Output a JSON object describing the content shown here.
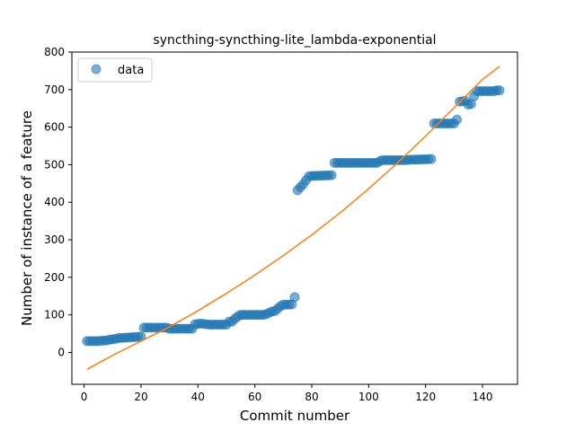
{
  "chart_data": {
    "type": "scatter",
    "title": "syncthing-syncthing-lite_lambda-exponential",
    "xlabel": "Commit number",
    "ylabel": "Number of instance of a feature",
    "xlim": [
      -4.3,
      152.3
    ],
    "ylim": [
      -85,
      800
    ],
    "x_ticks": [
      0,
      20,
      40,
      60,
      80,
      100,
      120,
      140
    ],
    "y_ticks": [
      0,
      100,
      200,
      300,
      400,
      500,
      600,
      700,
      800
    ],
    "legend": {
      "placement": "top-left",
      "entries": [
        "data"
      ]
    },
    "grid": false,
    "series": [
      {
        "name": "data",
        "kind": "scatter",
        "color": "#1f77b4",
        "segments": [
          [
            1,
            5,
            30,
            30
          ],
          [
            6,
            8,
            31,
            32
          ],
          [
            9,
            11,
            34,
            36
          ],
          [
            12,
            20,
            38,
            42
          ],
          [
            21,
            22,
            66,
            66
          ],
          [
            23,
            29,
            66,
            66
          ],
          [
            30,
            38,
            63,
            63
          ],
          [
            39,
            41,
            75,
            77
          ],
          [
            42,
            44,
            76,
            74
          ],
          [
            45,
            50,
            74,
            74
          ],
          [
            51,
            52,
            82,
            82
          ],
          [
            53,
            54,
            90,
            96
          ],
          [
            55,
            63,
            100,
            100
          ],
          [
            64,
            66,
            102,
            109
          ],
          [
            67,
            69,
            110,
            123
          ],
          [
            70,
            73,
            127,
            128
          ],
          [
            74,
            74,
            147,
            147
          ],
          [
            75,
            76,
            432,
            440
          ],
          [
            77,
            79,
            448,
            469
          ],
          [
            80,
            87,
            470,
            472
          ],
          [
            88,
            102,
            505,
            505
          ],
          [
            103,
            104,
            505,
            510
          ],
          [
            105,
            113,
            512,
            512
          ],
          [
            114,
            122,
            513,
            515
          ],
          [
            123,
            127,
            610,
            610
          ],
          [
            128,
            130,
            610,
            610
          ],
          [
            131,
            131,
            620,
            620
          ],
          [
            132,
            134,
            668,
            670
          ],
          [
            135,
            136,
            660,
            662
          ],
          [
            137,
            138,
            682,
            696
          ],
          [
            139,
            144,
            696,
            696
          ],
          [
            145,
            146,
            698,
            698
          ]
        ]
      },
      {
        "name": "",
        "kind": "line",
        "color": "#ff7f0e",
        "x": [
          1,
          10,
          20,
          30,
          40,
          50,
          60,
          70,
          80,
          90,
          100,
          110,
          120,
          130,
          140,
          146
        ],
        "y": [
          -45,
          -8,
          30,
          68,
          111,
          157,
          206,
          258,
          313,
          372,
          436,
          504,
          576,
          652,
          727,
          762
        ]
      }
    ]
  }
}
